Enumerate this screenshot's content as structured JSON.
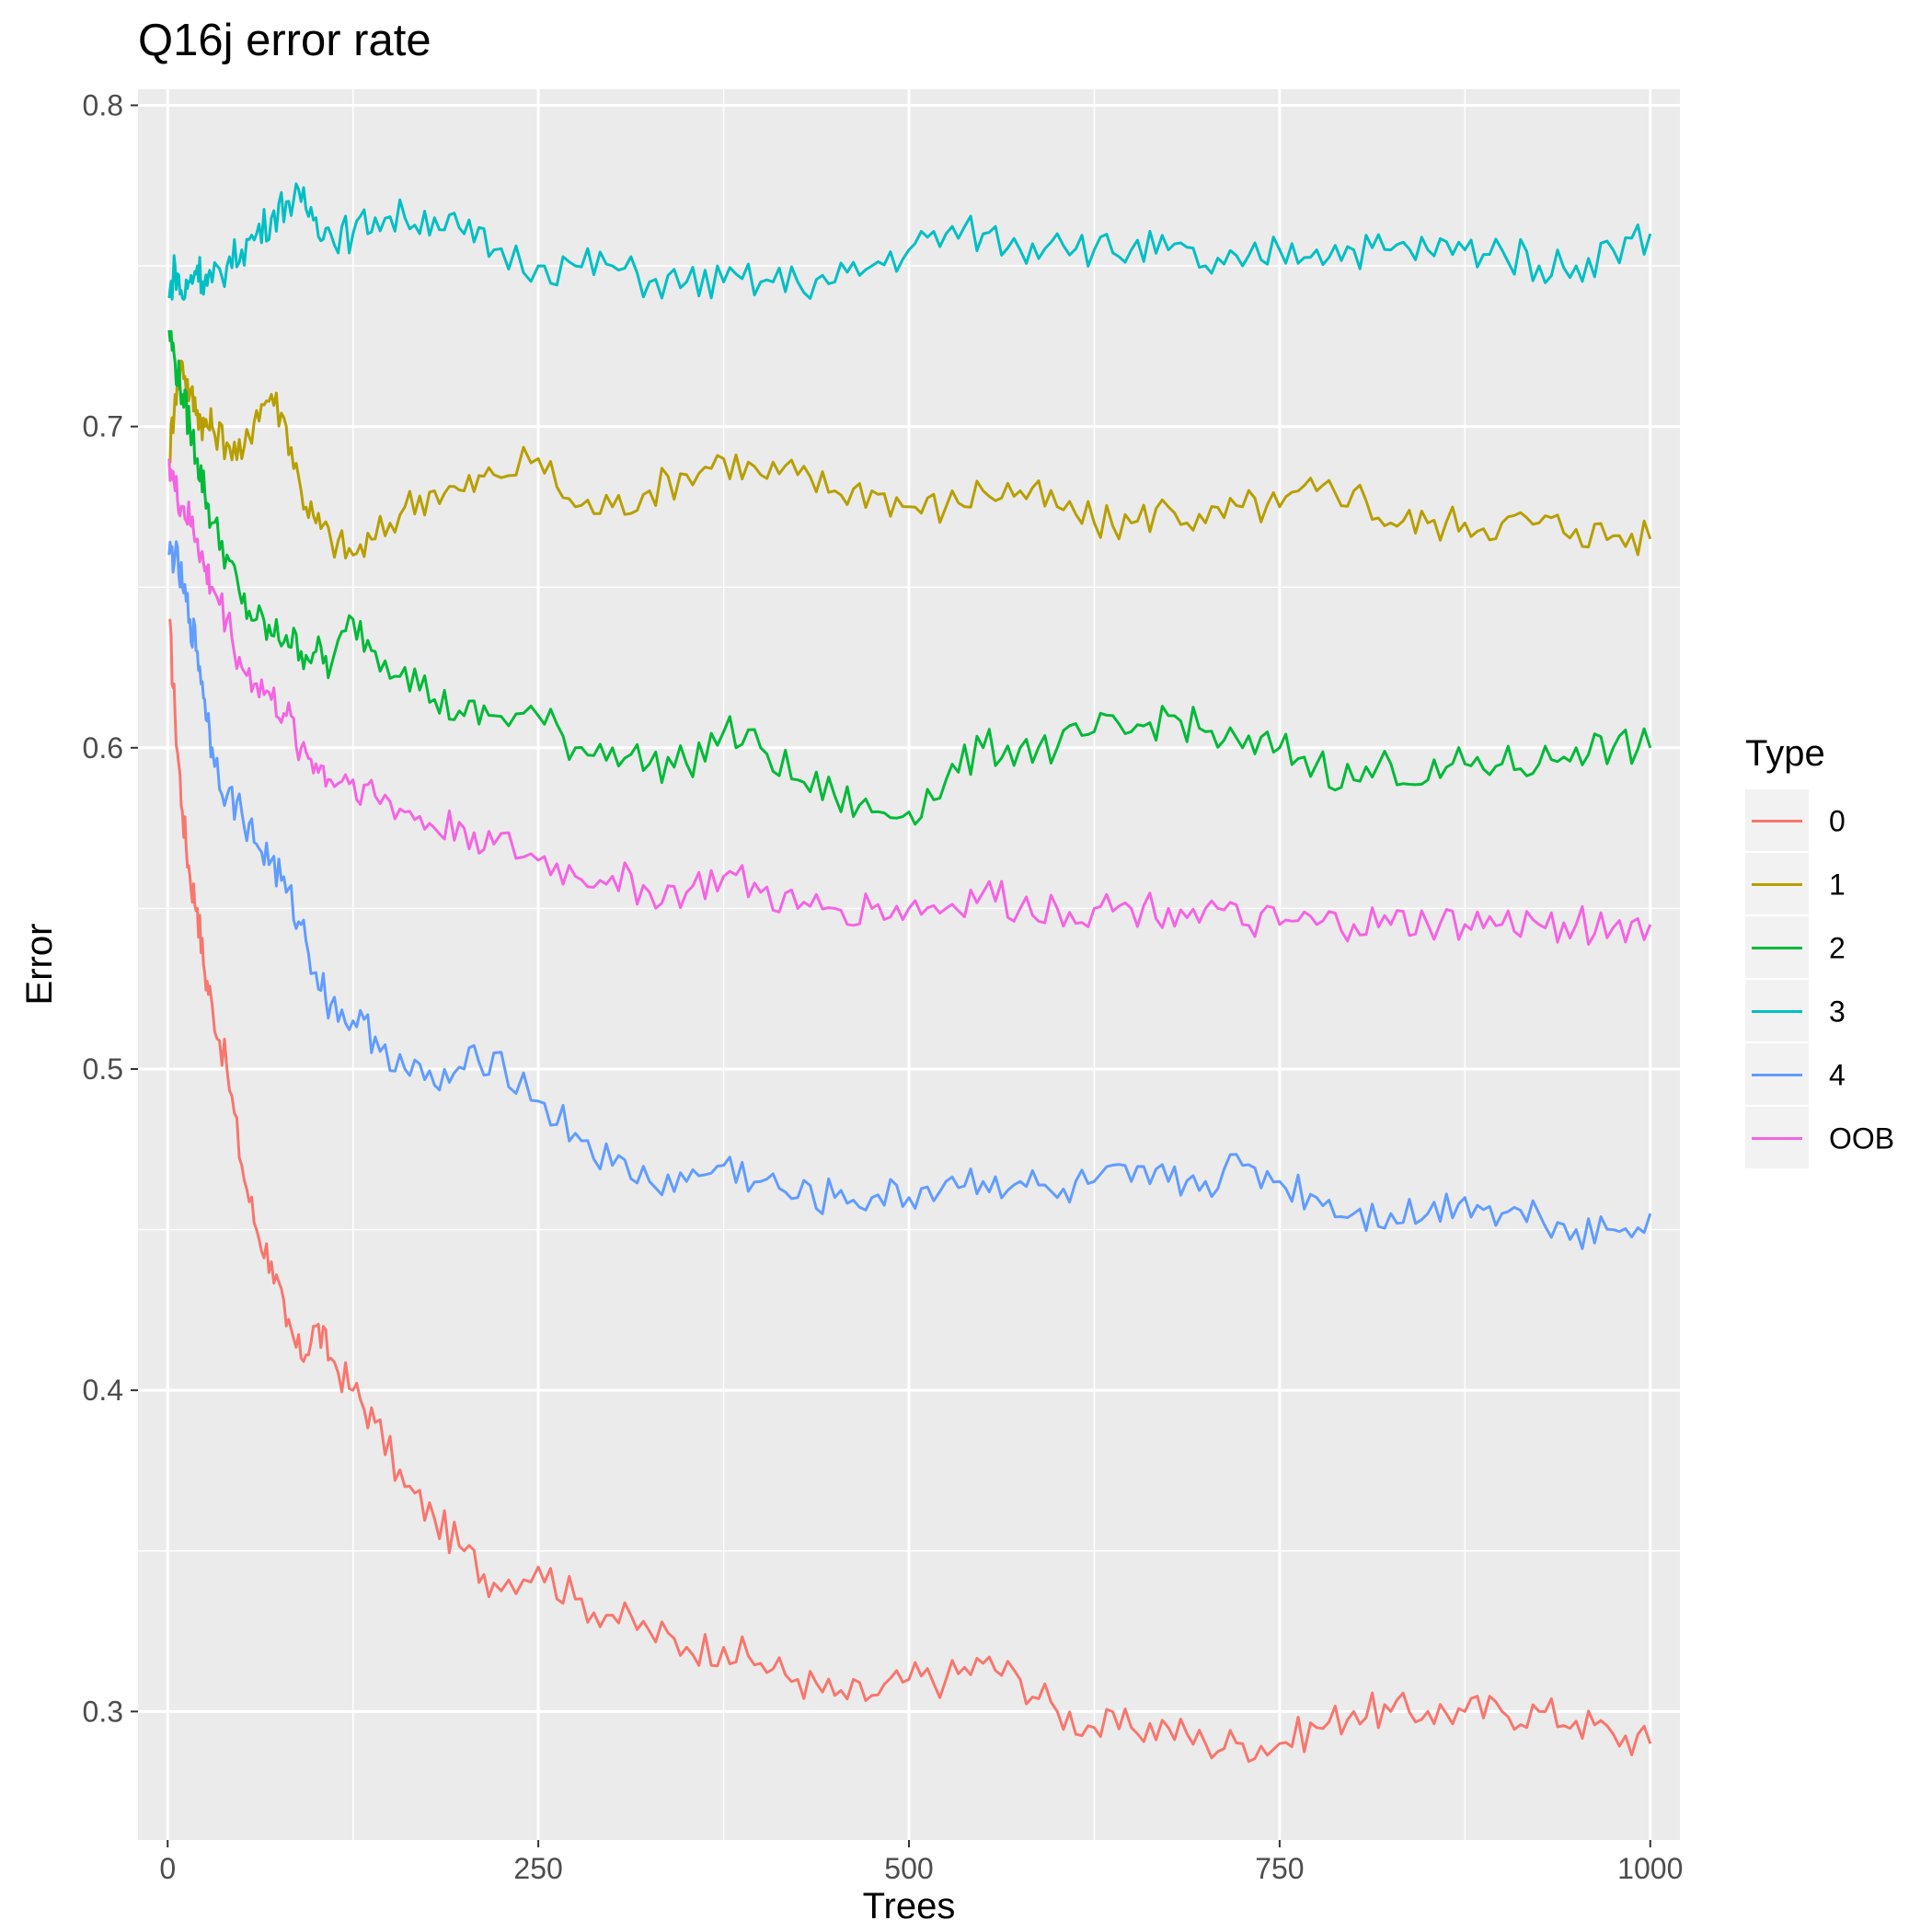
{
  "chart_data": {
    "type": "line",
    "title": "Q16j error rate",
    "xlabel": "Trees",
    "ylabel": "Error",
    "xlim": [
      -20,
      1020
    ],
    "ylim": [
      0.26,
      0.805
    ],
    "x_ticks": [
      0,
      250,
      500,
      750,
      1000
    ],
    "x_tick_labels": [
      "0",
      "250",
      "500",
      "750",
      "1000"
    ],
    "y_ticks": [
      0.3,
      0.4,
      0.5,
      0.6,
      0.7,
      0.8
    ],
    "y_tick_labels": [
      "0.3",
      "0.4",
      "0.5",
      "0.6",
      "0.7",
      "0.8"
    ],
    "grid": true,
    "background": "#ebebeb",
    "legend_title": "Type",
    "legend_position": "right",
    "x": [
      1,
      5,
      10,
      15,
      20,
      25,
      30,
      40,
      50,
      60,
      70,
      80,
      90,
      100,
      110,
      125,
      140,
      160,
      180,
      200,
      220,
      250,
      275,
      300,
      325,
      350,
      375,
      400,
      425,
      450,
      475,
      500,
      525,
      550,
      575,
      600,
      625,
      650,
      675,
      700,
      725,
      750,
      775,
      800,
      825,
      850,
      875,
      900,
      925,
      950,
      975,
      1000
    ],
    "series": [
      {
        "name": "0",
        "color": "#f8766d",
        "values": [
          0.64,
          0.61,
          0.58,
          0.56,
          0.55,
          0.53,
          0.52,
          0.5,
          0.47,
          0.45,
          0.44,
          0.42,
          0.41,
          0.42,
          0.41,
          0.4,
          0.39,
          0.37,
          0.36,
          0.35,
          0.34,
          0.345,
          0.335,
          0.33,
          0.325,
          0.32,
          0.32,
          0.315,
          0.31,
          0.305,
          0.305,
          0.31,
          0.31,
          0.315,
          0.31,
          0.3,
          0.295,
          0.295,
          0.295,
          0.29,
          0.29,
          0.29,
          0.295,
          0.3,
          0.3,
          0.3,
          0.3,
          0.3,
          0.3,
          0.297,
          0.293,
          0.29
        ]
      },
      {
        "name": "1",
        "color": "#b79f00",
        "values": [
          0.69,
          0.71,
          0.72,
          0.71,
          0.705,
          0.7,
          0.7,
          0.695,
          0.69,
          0.705,
          0.71,
          0.7,
          0.68,
          0.67,
          0.665,
          0.66,
          0.665,
          0.675,
          0.68,
          0.68,
          0.685,
          0.69,
          0.675,
          0.675,
          0.68,
          0.685,
          0.69,
          0.685,
          0.685,
          0.68,
          0.68,
          0.675,
          0.675,
          0.68,
          0.68,
          0.675,
          0.67,
          0.67,
          0.675,
          0.67,
          0.675,
          0.675,
          0.68,
          0.68,
          0.67,
          0.67,
          0.67,
          0.67,
          0.67,
          0.668,
          0.666,
          0.665
        ]
      },
      {
        "name": "2",
        "color": "#00ba38",
        "values": [
          0.73,
          0.72,
          0.71,
          0.7,
          0.69,
          0.68,
          0.67,
          0.66,
          0.645,
          0.64,
          0.635,
          0.635,
          0.63,
          0.63,
          0.625,
          0.64,
          0.63,
          0.625,
          0.615,
          0.61,
          0.61,
          0.61,
          0.6,
          0.6,
          0.595,
          0.595,
          0.605,
          0.6,
          0.59,
          0.585,
          0.58,
          0.58,
          0.59,
          0.6,
          0.6,
          0.6,
          0.605,
          0.605,
          0.61,
          0.605,
          0.6,
          0.6,
          0.595,
          0.59,
          0.595,
          0.59,
          0.595,
          0.595,
          0.595,
          0.6,
          0.6,
          0.6
        ]
      },
      {
        "name": "3",
        "color": "#00bfc4",
        "values": [
          0.74,
          0.75,
          0.74,
          0.745,
          0.75,
          0.745,
          0.745,
          0.75,
          0.755,
          0.76,
          0.765,
          0.77,
          0.77,
          0.765,
          0.76,
          0.76,
          0.765,
          0.765,
          0.765,
          0.76,
          0.755,
          0.75,
          0.75,
          0.75,
          0.745,
          0.745,
          0.745,
          0.745,
          0.745,
          0.745,
          0.75,
          0.755,
          0.76,
          0.76,
          0.755,
          0.76,
          0.755,
          0.755,
          0.755,
          0.75,
          0.75,
          0.755,
          0.755,
          0.755,
          0.755,
          0.755,
          0.755,
          0.755,
          0.75,
          0.75,
          0.755,
          0.76
        ]
      },
      {
        "name": "4",
        "color": "#619cff",
        "values": [
          0.66,
          0.66,
          0.65,
          0.64,
          0.63,
          0.615,
          0.6,
          0.585,
          0.58,
          0.57,
          0.565,
          0.555,
          0.545,
          0.53,
          0.52,
          0.515,
          0.51,
          0.5,
          0.495,
          0.5,
          0.505,
          0.49,
          0.48,
          0.47,
          0.465,
          0.465,
          0.47,
          0.465,
          0.46,
          0.46,
          0.46,
          0.46,
          0.465,
          0.465,
          0.465,
          0.46,
          0.465,
          0.465,
          0.465,
          0.465,
          0.47,
          0.465,
          0.46,
          0.455,
          0.455,
          0.455,
          0.46,
          0.455,
          0.455,
          0.45,
          0.45,
          0.455
        ]
      },
      {
        "name": "OOB",
        "color": "#f564e3",
        "values": [
          0.69,
          0.68,
          0.675,
          0.67,
          0.665,
          0.655,
          0.65,
          0.64,
          0.625,
          0.62,
          0.615,
          0.61,
          0.6,
          0.595,
          0.59,
          0.59,
          0.585,
          0.58,
          0.575,
          0.575,
          0.57,
          0.565,
          0.56,
          0.56,
          0.555,
          0.555,
          0.56,
          0.555,
          0.55,
          0.55,
          0.55,
          0.55,
          0.55,
          0.555,
          0.55,
          0.55,
          0.55,
          0.55,
          0.55,
          0.55,
          0.545,
          0.545,
          0.545,
          0.545,
          0.545,
          0.545,
          0.545,
          0.545,
          0.545,
          0.545,
          0.544,
          0.545
        ]
      }
    ]
  }
}
